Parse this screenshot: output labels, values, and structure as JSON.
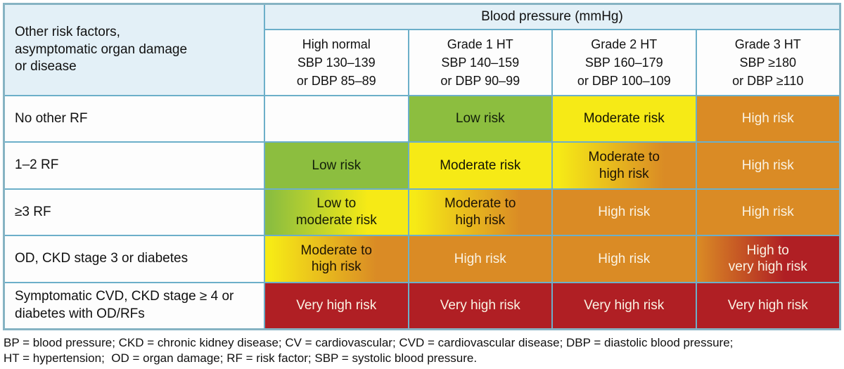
{
  "chart_data": {
    "type": "table",
    "title": "Blood pressure (mmHg)",
    "corner_header": "Other risk factors,\nasymptomatic organ damage\nor disease",
    "columns": [
      "High normal\nSBP 130–139\nor DBP 85–89",
      "Grade 1 HT\nSBP 140–159\nor DBP 90–99",
      "Grade 2 HT\nSBP 160–179\nor DBP 100–109",
      "Grade 3 HT\nSBP ≥180\nor DBP ≥110"
    ],
    "rows": [
      {
        "label": "No other RF",
        "cells": [
          {
            "text": "",
            "level": "empty"
          },
          {
            "text": "Low risk",
            "level": "low"
          },
          {
            "text": "Moderate risk",
            "level": "moderate"
          },
          {
            "text": "High risk",
            "level": "high"
          }
        ]
      },
      {
        "label": "1–2 RF",
        "cells": [
          {
            "text": "Low risk",
            "level": "low"
          },
          {
            "text": "Moderate risk",
            "level": "moderate"
          },
          {
            "text": "Moderate to\nhigh risk",
            "level": "moderate-high"
          },
          {
            "text": "High risk",
            "level": "high"
          }
        ]
      },
      {
        "label": "≥3 RF",
        "cells": [
          {
            "text": "Low to\nmoderate risk",
            "level": "low-moderate"
          },
          {
            "text": "Moderate to\nhigh risk",
            "level": "moderate-high"
          },
          {
            "text": "High risk",
            "level": "high"
          },
          {
            "text": "High risk",
            "level": "high"
          }
        ]
      },
      {
        "label": "OD, CKD stage 3 or diabetes",
        "cells": [
          {
            "text": "Moderate to\nhigh risk",
            "level": "moderate-high"
          },
          {
            "text": "High risk",
            "level": "high"
          },
          {
            "text": "High risk",
            "level": "high"
          },
          {
            "text": "High to\nvery high risk",
            "level": "high-very-high"
          }
        ]
      },
      {
        "label": "Symptomatic CVD, CKD stage ≥ 4 or\ndiabetes with OD/RFs",
        "cells": [
          {
            "text": "Very high risk",
            "level": "very-high"
          },
          {
            "text": "Very high risk",
            "level": "very-high"
          },
          {
            "text": "Very high risk",
            "level": "very-high"
          },
          {
            "text": "Very high risk",
            "level": "very-high"
          }
        ]
      }
    ],
    "colors": {
      "low": "#8cbe3f",
      "moderate": "#f6ea16",
      "high": "#da8b25",
      "very_high": "#b01f24",
      "header_bg": "#e3f0f7",
      "border": "#6cafc9"
    },
    "footnote": "BP = blood pressure; CKD = chronic kidney disease; CV = cardiovascular; CVD = cardiovascular disease; DBP = diastolic blood pressure;\nHT = hypertension;  OD = organ damage; RF = risk factor; SBP = systolic blood pressure."
  }
}
